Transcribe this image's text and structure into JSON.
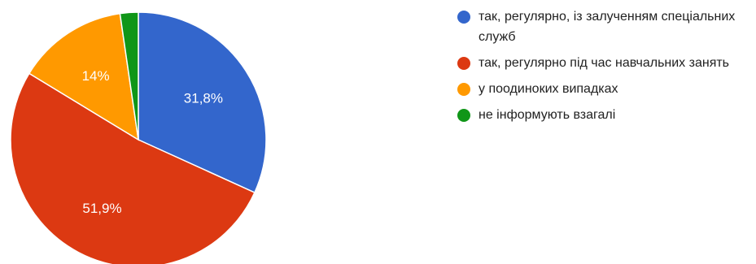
{
  "chart_data": {
    "type": "pie",
    "slices": [
      {
        "label": "так, регулярно, із залученням спеціальних служб",
        "value": 31.8,
        "display": "31,8%",
        "color": "#3366cc"
      },
      {
        "label": "так, регулярно під час навчальних занять",
        "value": 51.9,
        "display": "51,9%",
        "color": "#dc3912"
      },
      {
        "label": "у поодиноких випадках",
        "value": 14,
        "display": "14%",
        "color": "#ff9900"
      },
      {
        "label": "не інформують взагалі",
        "value": 2.3,
        "display": "",
        "color": "#109618"
      }
    ],
    "start_angle_deg": 90,
    "direction": "clockwise",
    "legend_position": "right"
  }
}
